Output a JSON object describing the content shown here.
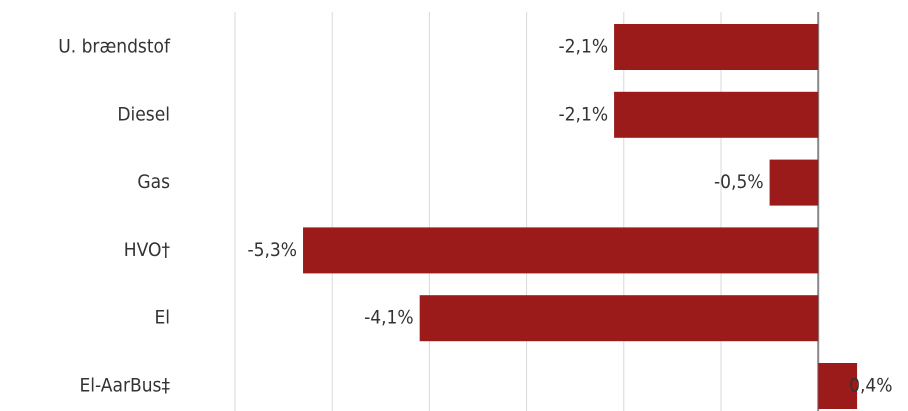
{
  "chart_data": {
    "type": "barh",
    "categories": [
      "U. brændstof",
      "Diesel",
      "Gas",
      "HVO†",
      "El",
      "El-AarBus‡"
    ],
    "values": [
      -2.1,
      -2.1,
      -0.5,
      -5.3,
      -4.1,
      0.4
    ],
    "value_labels": [
      "-2,1%",
      "-2,1%",
      "-0,5%",
      "-5,3%",
      "-4,1%",
      "0,4%"
    ],
    "color": "#9b1b1b",
    "xlim": [
      -6,
      0.9
    ],
    "xticks": [
      -6,
      -5,
      -4,
      -3,
      -2,
      -1,
      0
    ],
    "grid": true
  }
}
